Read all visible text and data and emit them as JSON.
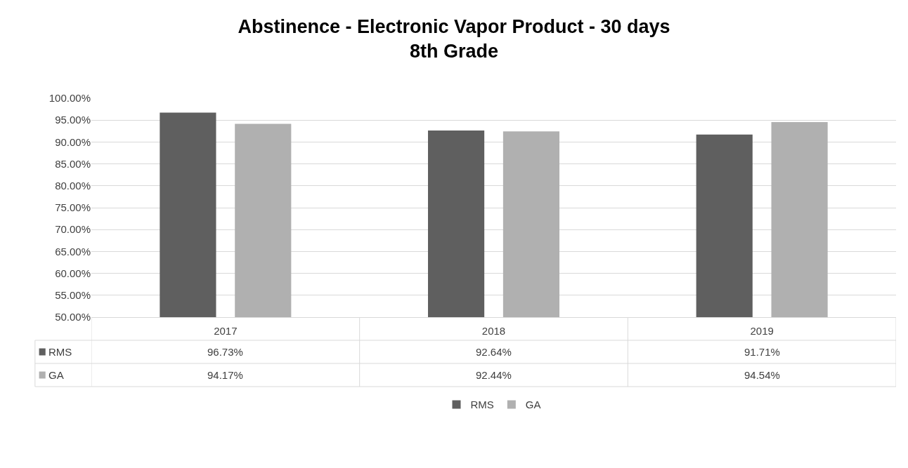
{
  "chart_data": {
    "type": "bar",
    "title": "Abstinence - Electronic Vapor Product - 30 days\n8th Grade",
    "categories": [
      "2017",
      "2018",
      "2019"
    ],
    "series": [
      {
        "name": "RMS",
        "color": "#5f5f5f",
        "values": [
          96.73,
          92.64,
          91.71
        ],
        "value_labels": [
          "96.73%",
          "92.64%",
          "91.71%"
        ]
      },
      {
        "name": "GA",
        "color": "#b0b0b0",
        "values": [
          94.17,
          92.44,
          94.54
        ],
        "value_labels": [
          "94.17%",
          "92.44%",
          "94.54%"
        ]
      }
    ],
    "ylim": [
      50,
      100
    ],
    "yticks": [
      {
        "value": 50,
        "label": "50.00%"
      },
      {
        "value": 55,
        "label": "55.00%"
      },
      {
        "value": 60,
        "label": "60.00%"
      },
      {
        "value": 65,
        "label": "65.00%"
      },
      {
        "value": 70,
        "label": "70.00%"
      },
      {
        "value": 75,
        "label": "75.00%"
      },
      {
        "value": 80,
        "label": "80.00%"
      },
      {
        "value": 85,
        "label": "85.00%"
      },
      {
        "value": 90,
        "label": "90.00%"
      },
      {
        "value": 95,
        "label": "95.00%"
      },
      {
        "value": 100,
        "label": "100.00%"
      }
    ],
    "grid": "y",
    "legend": "bottom"
  }
}
